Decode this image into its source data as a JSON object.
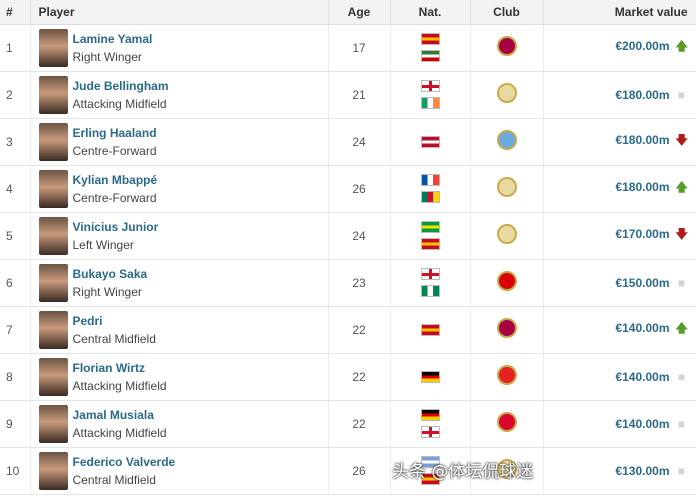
{
  "headers": {
    "rank": "#",
    "player": "Player",
    "age": "Age",
    "nat": "Nat.",
    "club": "Club",
    "value": "Market value"
  },
  "rows": [
    {
      "rank": "1",
      "name": "Lamine Yamal",
      "position": "Right Winger",
      "age": "17",
      "flags": [
        [
          "#c60b1e",
          "#ffc400",
          "#c60b1e"
        ],
        [
          "#2f7a3a",
          "#fff",
          "#c00"
        ]
      ],
      "club": "barcelona-crest",
      "clubColor": "#a50044",
      "value": "€200.00m",
      "trend": "up"
    },
    {
      "rank": "2",
      "name": "Jude Bellingham",
      "position": "Attacking Midfield",
      "age": "21",
      "flags": [
        "england",
        [
          "#169b62",
          "#fff",
          "#ff883e",
          "v"
        ]
      ],
      "club": "real-madrid-crest",
      "clubColor": "#e8d9a0",
      "value": "€180.00m",
      "trend": "same"
    },
    {
      "rank": "3",
      "name": "Erling Haaland",
      "position": "Centre-Forward",
      "age": "24",
      "flags": [
        [
          "#ba0c2f",
          "#fff",
          "#ba0c2f"
        ]
      ],
      "club": "manchester-city-crest",
      "clubColor": "#6cabdd",
      "value": "€180.00m",
      "trend": "down"
    },
    {
      "rank": "4",
      "name": "Kylian Mbappé",
      "position": "Centre-Forward",
      "age": "26",
      "flags": [
        [
          "#0055a4",
          "#fff",
          "#ef4135",
          "v"
        ],
        [
          "#007a5e",
          "#ce1126",
          "#fcd116",
          "v"
        ]
      ],
      "club": "real-madrid-crest",
      "clubColor": "#e8d9a0",
      "value": "€180.00m",
      "trend": "up"
    },
    {
      "rank": "5",
      "name": "Vinicius Junior",
      "position": "Left Winger",
      "age": "24",
      "flags": [
        [
          "#009c3b",
          "#ffdf00",
          "#009c3b"
        ],
        [
          "#c60b1e",
          "#ffc400",
          "#c60b1e"
        ]
      ],
      "club": "real-madrid-crest",
      "clubColor": "#e8d9a0",
      "value": "€170.00m",
      "trend": "down"
    },
    {
      "rank": "6",
      "name": "Bukayo Saka",
      "position": "Right Winger",
      "age": "23",
      "flags": [
        "england",
        [
          "#008751",
          "#fff",
          "#008751",
          "v"
        ]
      ],
      "club": "arsenal-crest",
      "clubColor": "#db0007",
      "value": "€150.00m",
      "trend": "same"
    },
    {
      "rank": "7",
      "name": "Pedri",
      "position": "Central Midfield",
      "age": "22",
      "flags": [
        [
          "#c60b1e",
          "#ffc400",
          "#c60b1e"
        ]
      ],
      "club": "barcelona-crest",
      "clubColor": "#a50044",
      "value": "€140.00m",
      "trend": "up"
    },
    {
      "rank": "8",
      "name": "Florian Wirtz",
      "position": "Attacking Midfield",
      "age": "22",
      "flags": [
        [
          "#000",
          "#dd0000",
          "#ffce00"
        ]
      ],
      "club": "leverkusen-crest",
      "clubColor": "#e32221",
      "value": "€140.00m",
      "trend": "same"
    },
    {
      "rank": "9",
      "name": "Jamal Musiala",
      "position": "Attacking Midfield",
      "age": "22",
      "flags": [
        [
          "#000",
          "#dd0000",
          "#ffce00"
        ],
        "england"
      ],
      "club": "bayern-crest",
      "clubColor": "#dc052d",
      "value": "€140.00m",
      "trend": "same"
    },
    {
      "rank": "10",
      "name": "Federico Valverde",
      "position": "Central Midfield",
      "age": "26",
      "flags": [
        [
          "#7b9fd1",
          "#fff",
          "#7b9fd1"
        ],
        [
          "#c60b1e",
          "#ffc400",
          "#c60b1e"
        ]
      ],
      "club": "real-madrid-crest",
      "clubColor": "#e8d9a0",
      "value": "€130.00m",
      "trend": "same"
    }
  ],
  "trendColors": {
    "up": "#5a9a2a",
    "down": "#b01c1c",
    "same": "#d4d4d4"
  },
  "watermark": "头条 @体坛侃球迷"
}
